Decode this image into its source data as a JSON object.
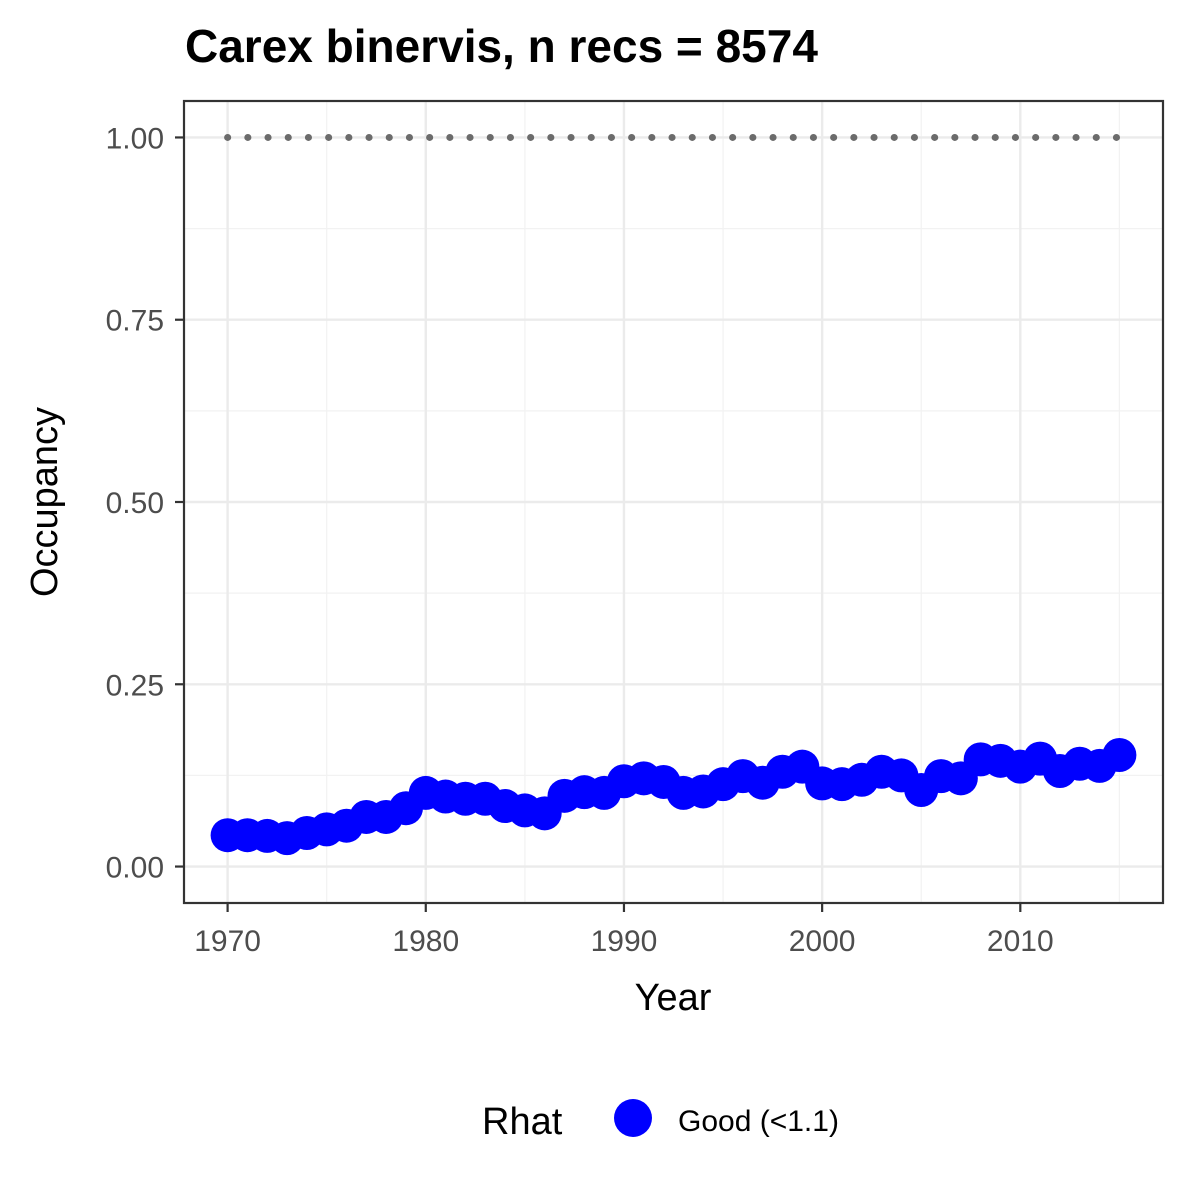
{
  "chart_data": {
    "type": "scatter",
    "title": "Carex binervis, n recs = 8574",
    "xlabel": "Year",
    "ylabel": "Occupancy",
    "xlim": [
      1967.8,
      2017.2
    ],
    "ylim": [
      -0.05,
      1.05
    ],
    "x_ticks": [
      1970,
      1980,
      1990,
      2000,
      2010
    ],
    "x_tick_labels": [
      "1970",
      "1980",
      "1990",
      "2000",
      "2010"
    ],
    "y_ticks": [
      0,
      0.25,
      0.5,
      0.75,
      1.0
    ],
    "y_tick_labels": [
      "0.00",
      "0.25",
      "0.50",
      "0.75",
      "1.00"
    ],
    "grid": true,
    "legend": {
      "position": "bottom",
      "title": "Rhat",
      "entries": [
        {
          "label": "Good (<1.1)",
          "color": "#0000ff"
        }
      ]
    },
    "series": [
      {
        "name": "Good (<1.1)",
        "color": "#0000ff",
        "x": [
          1970,
          1971,
          1972,
          1973,
          1974,
          1975,
          1976,
          1977,
          1978,
          1979,
          1980,
          1981,
          1982,
          1983,
          1984,
          1985,
          1986,
          1987,
          1988,
          1989,
          1990,
          1991,
          1992,
          1993,
          1994,
          1995,
          1996,
          1997,
          1998,
          1999,
          2000,
          2001,
          2002,
          2003,
          2004,
          2005,
          2006,
          2007,
          2008,
          2009,
          2010,
          2011,
          2012,
          2013,
          2014,
          2015
        ],
        "y": [
          0.043,
          0.043,
          0.042,
          0.039,
          0.046,
          0.051,
          0.056,
          0.068,
          0.068,
          0.08,
          0.101,
          0.096,
          0.093,
          0.093,
          0.083,
          0.077,
          0.073,
          0.097,
          0.102,
          0.101,
          0.117,
          0.121,
          0.116,
          0.101,
          0.103,
          0.113,
          0.124,
          0.115,
          0.13,
          0.137,
          0.114,
          0.113,
          0.119,
          0.13,
          0.125,
          0.105,
          0.124,
          0.121,
          0.147,
          0.145,
          0.137,
          0.148,
          0.131,
          0.141,
          0.138,
          0.153
        ]
      },
      {
        "name": "",
        "style": "dotted",
        "color": "#6b6b6b",
        "x": [
          1970,
          2015
        ],
        "y": [
          1.0,
          1.0
        ]
      }
    ]
  }
}
